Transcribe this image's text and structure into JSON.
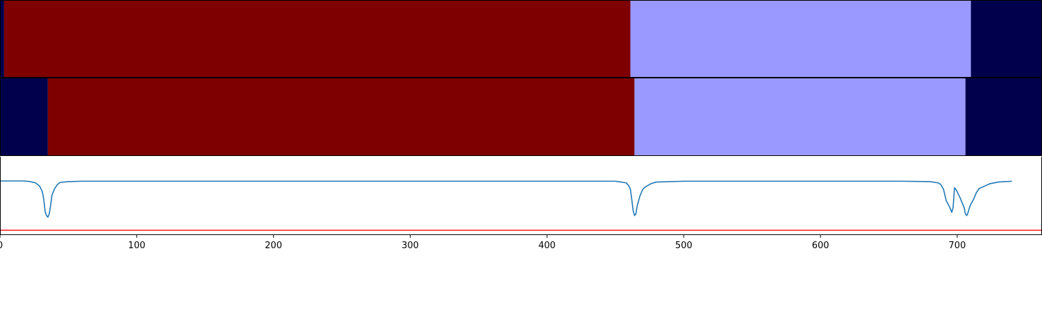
{
  "chart_data": [
    {
      "type": "heatmap",
      "panel": "segmentation-row-1",
      "segments": [
        {
          "start": 0,
          "end": 3,
          "color": "#00004c"
        },
        {
          "start": 3,
          "end": 461,
          "color": "#7f0000"
        },
        {
          "start": 461,
          "end": 710,
          "color": "#9999ff"
        },
        {
          "start": 710,
          "end": 762,
          "color": "#00004c"
        }
      ]
    },
    {
      "type": "heatmap",
      "panel": "segmentation-row-2",
      "segments": [
        {
          "start": 0,
          "end": 35,
          "color": "#00004c"
        },
        {
          "start": 35,
          "end": 464,
          "color": "#7f0000"
        },
        {
          "start": 464,
          "end": 706,
          "color": "#9999ff"
        },
        {
          "start": 706,
          "end": 762,
          "color": "#00004c"
        }
      ]
    },
    {
      "type": "line",
      "panel": "boundary-signal",
      "xlim": [
        0,
        762
      ],
      "ylim": [
        -0.65,
        0.3
      ],
      "xticks": [
        0,
        100,
        200,
        300,
        400,
        500,
        600,
        700
      ],
      "grid": false,
      "series": [
        {
          "color": "#1f77b4",
          "x": [
            0,
            18,
            22,
            26,
            29,
            31,
            32,
            33,
            34,
            35,
            36,
            37,
            38,
            40,
            42,
            44,
            50,
            60,
            120,
            200,
            300,
            400,
            450,
            458,
            460,
            461,
            462,
            463,
            464,
            465,
            466,
            468,
            470,
            472,
            476,
            480,
            500,
            600,
            660,
            680,
            686,
            688,
            690,
            692,
            694,
            696,
            697,
            698,
            699,
            700,
            702,
            704,
            705,
            706,
            707,
            708,
            709,
            710,
            712,
            714,
            716,
            720,
            724,
            730,
            735,
            740
          ],
          "y": [
            0.003,
            0.003,
            -0.005,
            -0.02,
            -0.06,
            -0.13,
            -0.22,
            -0.37,
            -0.42,
            -0.44,
            -0.4,
            -0.3,
            -0.17,
            -0.09,
            -0.04,
            -0.015,
            -0.005,
            0.0,
            0.0,
            0.0,
            0.0,
            0.0,
            0.0,
            -0.02,
            -0.06,
            -0.1,
            -0.22,
            -0.36,
            -0.42,
            -0.4,
            -0.3,
            -0.18,
            -0.1,
            -0.07,
            -0.03,
            -0.01,
            0.0,
            0.0,
            0.0,
            -0.005,
            -0.02,
            -0.04,
            -0.1,
            -0.24,
            -0.3,
            -0.38,
            -0.32,
            -0.08,
            -0.1,
            -0.13,
            -0.2,
            -0.28,
            -0.32,
            -0.4,
            -0.42,
            -0.38,
            -0.32,
            -0.28,
            -0.22,
            -0.14,
            -0.09,
            -0.06,
            -0.03,
            -0.01,
            -0.005,
            0.0
          ]
        },
        {
          "color": "#ff0000",
          "x": [
            0,
            762
          ],
          "y": [
            -0.6,
            -0.6
          ]
        }
      ]
    }
  ]
}
